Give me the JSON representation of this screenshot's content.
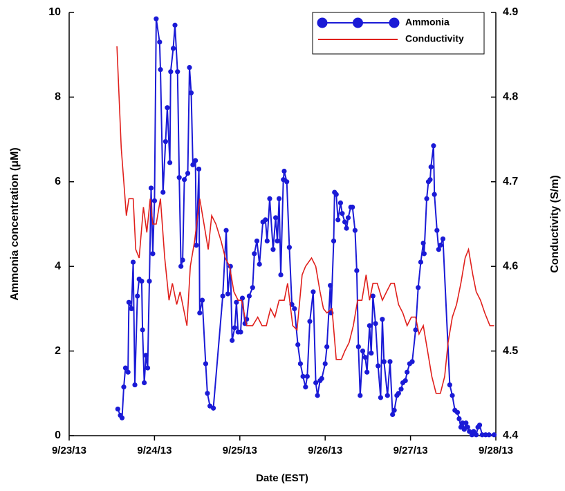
{
  "chart_data": {
    "type": "line",
    "xlabel": "Date (EST)",
    "ylabel": "Ammonia concentration (μM)",
    "y2label": "Conductivity (S/m)",
    "xlim": [
      0,
      5
    ],
    "xticks": [
      {
        "value": 0,
        "label": "9/23/13"
      },
      {
        "value": 1,
        "label": "9/24/13"
      },
      {
        "value": 2,
        "label": "9/25/13"
      },
      {
        "value": 3,
        "label": "9/26/13"
      },
      {
        "value": 4,
        "label": "9/27/13"
      },
      {
        "value": 5,
        "label": "9/28/13"
      }
    ],
    "ylim": [
      0,
      10
    ],
    "yticks": [
      0,
      2,
      4,
      6,
      8,
      10
    ],
    "y2lim": [
      4.4,
      4.9
    ],
    "y2ticks": [
      4.4,
      4.5,
      4.6,
      4.7,
      4.8,
      4.9
    ],
    "legend": "upper right",
    "series": [
      {
        "name": "Ammonia",
        "color": "#1a1ad6",
        "marker": "circle",
        "x": [
          0.57,
          0.6,
          0.62,
          0.64,
          0.66,
          0.69,
          0.7,
          0.73,
          0.75,
          0.77,
          0.8,
          0.82,
          0.85,
          0.86,
          0.88,
          0.9,
          0.92,
          0.94,
          0.96,
          0.98,
          1.0,
          1.02,
          1.06,
          1.07,
          1.1,
          1.13,
          1.15,
          1.18,
          1.19,
          1.22,
          1.24,
          1.27,
          1.29,
          1.31,
          1.33,
          1.35,
          1.39,
          1.41,
          1.43,
          1.45,
          1.48,
          1.49,
          1.52,
          1.53,
          1.56,
          1.6,
          1.62,
          1.65,
          1.69,
          1.8,
          1.84,
          1.86,
          1.89,
          1.91,
          1.94,
          1.96,
          1.98,
          2.01,
          2.03,
          2.06,
          2.08,
          2.11,
          2.15,
          2.17,
          2.2,
          2.23,
          2.27,
          2.3,
          2.32,
          2.35,
          2.39,
          2.42,
          2.44,
          2.46,
          2.48,
          2.51,
          2.52,
          2.55,
          2.58,
          2.61,
          2.64,
          2.68,
          2.71,
          2.74,
          2.77,
          2.79,
          2.82,
          2.86,
          2.89,
          2.91,
          2.94,
          2.96,
          3.0,
          3.02,
          3.06,
          3.07,
          3.1,
          3.11,
          3.13,
          3.15,
          3.18,
          3.2,
          3.23,
          3.25,
          3.27,
          3.3,
          3.32,
          3.35,
          3.37,
          3.39,
          3.41,
          3.44,
          3.47,
          3.49,
          3.52,
          3.54,
          3.56,
          3.59,
          3.62,
          3.65,
          3.67,
          3.69,
          3.73,
          3.76,
          3.79,
          3.81,
          3.84,
          3.86,
          3.89,
          3.91,
          3.94,
          3.96,
          3.99,
          4.02,
          4.06,
          4.09,
          4.12,
          4.15,
          4.16,
          4.19,
          4.21,
          4.23,
          4.24,
          4.27,
          4.28,
          4.31,
          4.33,
          4.35,
          4.38,
          4.46,
          4.49,
          4.52,
          4.55,
          4.57,
          4.59,
          4.61,
          4.63,
          4.65,
          4.67,
          4.69,
          4.72,
          4.74,
          4.77,
          4.79,
          4.81,
          4.84,
          4.88,
          4.92,
          4.98
        ],
        "values": [
          0.63,
          0.48,
          0.42,
          1.15,
          1.6,
          1.5,
          3.15,
          3.0,
          4.1,
          1.2,
          3.3,
          3.7,
          3.65,
          2.5,
          1.25,
          1.9,
          1.6,
          3.65,
          5.85,
          4.3,
          5.55,
          9.85,
          9.3,
          8.65,
          5.75,
          6.95,
          7.75,
          6.45,
          8.6,
          9.15,
          9.7,
          8.6,
          6.1,
          4.0,
          4.15,
          6.05,
          6.2,
          8.7,
          8.1,
          6.4,
          6.5,
          4.5,
          6.3,
          2.9,
          3.2,
          1.7,
          1.0,
          0.7,
          0.65,
          3.3,
          4.85,
          3.35,
          4.0,
          2.25,
          2.55,
          3.15,
          2.45,
          2.45,
          3.25,
          2.65,
          2.75,
          3.3,
          3.5,
          4.3,
          4.6,
          4.05,
          5.05,
          5.1,
          4.6,
          5.6,
          4.4,
          5.15,
          4.6,
          5.6,
          3.8,
          6.05,
          6.25,
          6.0,
          4.45,
          3.1,
          3.0,
          2.15,
          1.7,
          1.4,
          1.15,
          1.4,
          2.7,
          3.4,
          1.25,
          0.95,
          1.3,
          1.35,
          1.7,
          2.1,
          3.55,
          2.9,
          4.6,
          5.75,
          5.7,
          5.1,
          5.5,
          5.25,
          5.05,
          4.9,
          5.15,
          5.4,
          5.4,
          4.85,
          3.9,
          2.1,
          0.95,
          2.0,
          1.85,
          1.5,
          2.6,
          1.95,
          3.3,
          2.65,
          1.65,
          0.9,
          2.75,
          1.75,
          0.95,
          1.75,
          0.5,
          0.6,
          0.95,
          1.0,
          1.1,
          1.25,
          1.3,
          1.5,
          1.7,
          1.75,
          2.5,
          3.5,
          4.1,
          4.55,
          4.3,
          5.6,
          6.0,
          6.05,
          6.35,
          6.85,
          5.7,
          4.85,
          4.4,
          4.5,
          4.65,
          1.2,
          0.95,
          0.6,
          0.55,
          0.4,
          0.2,
          0.3,
          0.15,
          0.3,
          0.2,
          0.1,
          0.02,
          0.1,
          0.02,
          0.2,
          0.25,
          0.02,
          0.02,
          0.02,
          0.02
        ]
      },
      {
        "name": "Conductivity",
        "color": "#e0201c",
        "axis": "y2",
        "x": [
          0.56,
          0.61,
          0.67,
          0.7,
          0.75,
          0.78,
          0.82,
          0.87,
          0.91,
          0.95,
          0.98,
          1.02,
          1.07,
          1.12,
          1.17,
          1.21,
          1.26,
          1.3,
          1.34,
          1.38,
          1.42,
          1.47,
          1.53,
          1.58,
          1.63,
          1.67,
          1.72,
          1.78,
          1.83,
          1.88,
          1.93,
          1.98,
          2.02,
          2.08,
          2.15,
          2.21,
          2.26,
          2.31,
          2.36,
          2.41,
          2.46,
          2.52,
          2.56,
          2.62,
          2.67,
          2.73,
          2.77,
          2.84,
          2.89,
          2.94,
          2.98,
          3.02,
          3.08,
          3.13,
          3.19,
          3.23,
          3.28,
          3.33,
          3.38,
          3.43,
          3.48,
          3.52,
          3.56,
          3.61,
          3.67,
          3.72,
          3.77,
          3.81,
          3.86,
          3.91,
          3.96,
          4.01,
          4.06,
          4.1,
          4.15,
          4.2,
          4.25,
          4.3,
          4.35,
          4.4,
          4.44,
          4.49,
          4.54,
          4.59,
          4.64,
          4.68,
          4.73,
          4.77,
          4.82,
          4.87,
          4.93,
          4.98
        ],
        "values": [
          4.86,
          4.74,
          4.66,
          4.68,
          4.68,
          4.62,
          4.61,
          4.67,
          4.64,
          4.68,
          4.65,
          4.65,
          4.68,
          4.61,
          4.56,
          4.58,
          4.555,
          4.57,
          4.55,
          4.53,
          4.6,
          4.63,
          4.68,
          4.65,
          4.62,
          4.66,
          4.65,
          4.63,
          4.61,
          4.6,
          4.57,
          4.56,
          4.56,
          4.53,
          4.53,
          4.54,
          4.53,
          4.53,
          4.55,
          4.54,
          4.56,
          4.56,
          4.58,
          4.53,
          4.525,
          4.59,
          4.6,
          4.61,
          4.6,
          4.57,
          4.55,
          4.545,
          4.55,
          4.49,
          4.49,
          4.5,
          4.51,
          4.53,
          4.56,
          4.56,
          4.59,
          4.56,
          4.58,
          4.58,
          4.56,
          4.57,
          4.58,
          4.58,
          4.555,
          4.545,
          4.53,
          4.54,
          4.54,
          4.52,
          4.53,
          4.5,
          4.47,
          4.45,
          4.45,
          4.47,
          4.51,
          4.54,
          4.555,
          4.58,
          4.61,
          4.62,
          4.59,
          4.57,
          4.56,
          4.545,
          4.53,
          4.53
        ]
      }
    ]
  }
}
